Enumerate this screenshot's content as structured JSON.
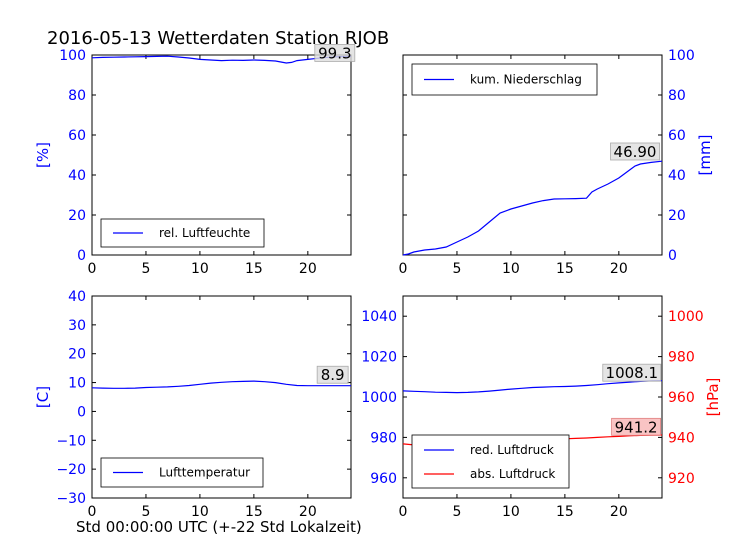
{
  "figure": {
    "title": "2016-05-13 Wetterdaten Station RJOB",
    "xlabel": "Std 00:00:00 UTC (+-22 Std Lokalzeit)"
  },
  "colors": {
    "blue": "#0000ff",
    "red": "#ff0000",
    "annotation_box": "#dddddd",
    "annotation_box_red": "#f7b5b5"
  },
  "chart_data": [
    {
      "type": "line",
      "panel": "top-left",
      "ylabel": "[%]",
      "ylabel_side": "left",
      "xlim": [
        0,
        24
      ],
      "ylim": [
        0,
        100
      ],
      "xticks": [
        0,
        5,
        10,
        15,
        20
      ],
      "yticks": [
        0,
        20,
        40,
        60,
        80,
        100
      ],
      "legend": {
        "placement": "lower-left",
        "entries": [
          "rel. Luftfeuchte"
        ]
      },
      "annotation": {
        "text": "99.3",
        "x": 22.5,
        "y": 99.3
      },
      "series": [
        {
          "name": "rel. Luftfeuchte",
          "color": "#0000ff",
          "x": [
            0,
            1,
            2,
            3,
            4,
            5,
            6,
            7,
            8,
            9,
            10,
            11,
            12,
            13,
            14,
            15,
            16,
            17,
            17.5,
            18,
            18.5,
            19,
            20,
            21,
            22,
            23,
            24
          ],
          "y": [
            98.6,
            98.8,
            98.9,
            99.0,
            99.1,
            99.2,
            99.3,
            99.4,
            99.0,
            98.5,
            97.8,
            97.5,
            97.2,
            97.4,
            97.3,
            97.5,
            97.3,
            97.0,
            96.5,
            96.0,
            96.3,
            97.2,
            97.8,
            98.4,
            98.9,
            99.2,
            99.3
          ]
        }
      ]
    },
    {
      "type": "line",
      "panel": "top-right",
      "ylabel": "[mm]",
      "ylabel_side": "right",
      "xlim": [
        0,
        24
      ],
      "ylim": [
        0,
        100
      ],
      "xticks": [
        0,
        5,
        10,
        15,
        20
      ],
      "yticks": [
        0,
        20,
        40,
        60,
        80,
        100
      ],
      "legend": {
        "placement": "upper-left",
        "entries": [
          "kum. Niederschlag"
        ]
      },
      "annotation": {
        "text": "46.90",
        "x": 21.5,
        "y": 50
      },
      "series": [
        {
          "name": "kum. Niederschlag",
          "color": "#0000ff",
          "x": [
            0,
            0.5,
            1,
            2,
            3,
            3.5,
            4,
            5,
            6,
            7,
            8,
            9,
            10,
            11,
            12,
            13,
            14,
            15,
            16,
            17,
            17.5,
            18,
            19,
            20,
            20.5,
            21,
            21.5,
            22,
            23,
            24
          ],
          "y": [
            0,
            0.5,
            1.5,
            2.5,
            3.0,
            3.5,
            4.0,
            6.5,
            9.0,
            12.0,
            16.5,
            21.0,
            23.0,
            24.5,
            26.0,
            27.2,
            28.0,
            28.1,
            28.2,
            28.4,
            31.5,
            33.0,
            35.5,
            38.5,
            40.5,
            42.5,
            44.5,
            45.5,
            46.3,
            46.9
          ]
        }
      ]
    },
    {
      "type": "line",
      "panel": "bottom-left",
      "ylabel": "[C]",
      "ylabel_side": "left",
      "xlim": [
        0,
        24
      ],
      "ylim": [
        -30,
        40
      ],
      "xticks": [
        0,
        5,
        10,
        15,
        20
      ],
      "yticks": [
        -30,
        -20,
        -10,
        0,
        10,
        20,
        30,
        40
      ],
      "legend": {
        "placement": "lower-left",
        "entries": [
          "Lufttemperatur"
        ]
      },
      "annotation": {
        "text": "8.9",
        "x": 22.3,
        "y": 11.5
      },
      "series": [
        {
          "name": "Lufttemperatur",
          "color": "#0000ff",
          "x": [
            0,
            1,
            2,
            3,
            4,
            5,
            6,
            7,
            8,
            9,
            10,
            11,
            12,
            13,
            14,
            15,
            16,
            17,
            18,
            19,
            20,
            21,
            22,
            23,
            24
          ],
          "y": [
            8.2,
            8.1,
            8.0,
            8.0,
            8.1,
            8.3,
            8.4,
            8.5,
            8.7,
            9.0,
            9.4,
            9.8,
            10.1,
            10.3,
            10.4,
            10.5,
            10.3,
            10.0,
            9.4,
            9.0,
            8.9,
            8.9,
            8.9,
            8.9,
            8.9
          ]
        }
      ]
    },
    {
      "type": "line",
      "panel": "bottom-right",
      "ylabel": "[hPa]",
      "ylabel_side": "right",
      "xlim": [
        0,
        24
      ],
      "ylim": [
        950,
        1050
      ],
      "ylim_right": [
        910,
        1010
      ],
      "xticks": [
        0,
        5,
        10,
        15,
        20
      ],
      "yticks": [
        960,
        980,
        1000,
        1020,
        1040
      ],
      "yticks_right": [
        920,
        940,
        960,
        980,
        1000
      ],
      "legend": {
        "placement": "lower-left",
        "entries": [
          "red. Luftdruck",
          "abs. Luftdruck"
        ]
      },
      "annotations": [
        {
          "text": "1008.1",
          "x": 21.2,
          "y": 1010.3,
          "axis": "left"
        },
        {
          "text": "941.2",
          "x": 21.6,
          "y": 943.5,
          "axis": "right"
        }
      ],
      "series": [
        {
          "name": "red. Luftdruck",
          "color": "#0000ff",
          "axis": "left",
          "x": [
            0,
            1,
            2,
            3,
            4,
            5,
            6,
            7,
            8,
            9,
            10,
            11,
            12,
            13,
            14,
            15,
            16,
            17,
            18,
            19,
            20,
            21,
            22,
            23,
            24
          ],
          "y": [
            1003.0,
            1002.8,
            1002.6,
            1002.4,
            1002.3,
            1002.2,
            1002.3,
            1002.5,
            1002.9,
            1003.4,
            1003.9,
            1004.3,
            1004.7,
            1004.9,
            1005.1,
            1005.2,
            1005.4,
            1005.7,
            1006.1,
            1006.6,
            1007.0,
            1007.4,
            1007.7,
            1008.0,
            1008.1
          ]
        },
        {
          "name": "abs. Luftdruck",
          "color": "#ff0000",
          "axis": "right",
          "x": [
            0,
            1,
            2,
            3,
            4,
            5,
            6,
            7,
            8,
            9,
            10,
            11,
            12,
            13,
            14,
            15,
            16,
            17,
            18,
            19,
            20,
            21,
            22,
            23,
            24
          ],
          "y": [
            936.8,
            936.3,
            935.9,
            935.7,
            935.6,
            935.6,
            935.7,
            936.0,
            936.6,
            937.2,
            937.8,
            938.2,
            938.6,
            938.9,
            939.1,
            939.3,
            939.5,
            939.7,
            940.0,
            940.3,
            940.5,
            940.8,
            941.0,
            941.1,
            941.2
          ]
        }
      ]
    }
  ]
}
